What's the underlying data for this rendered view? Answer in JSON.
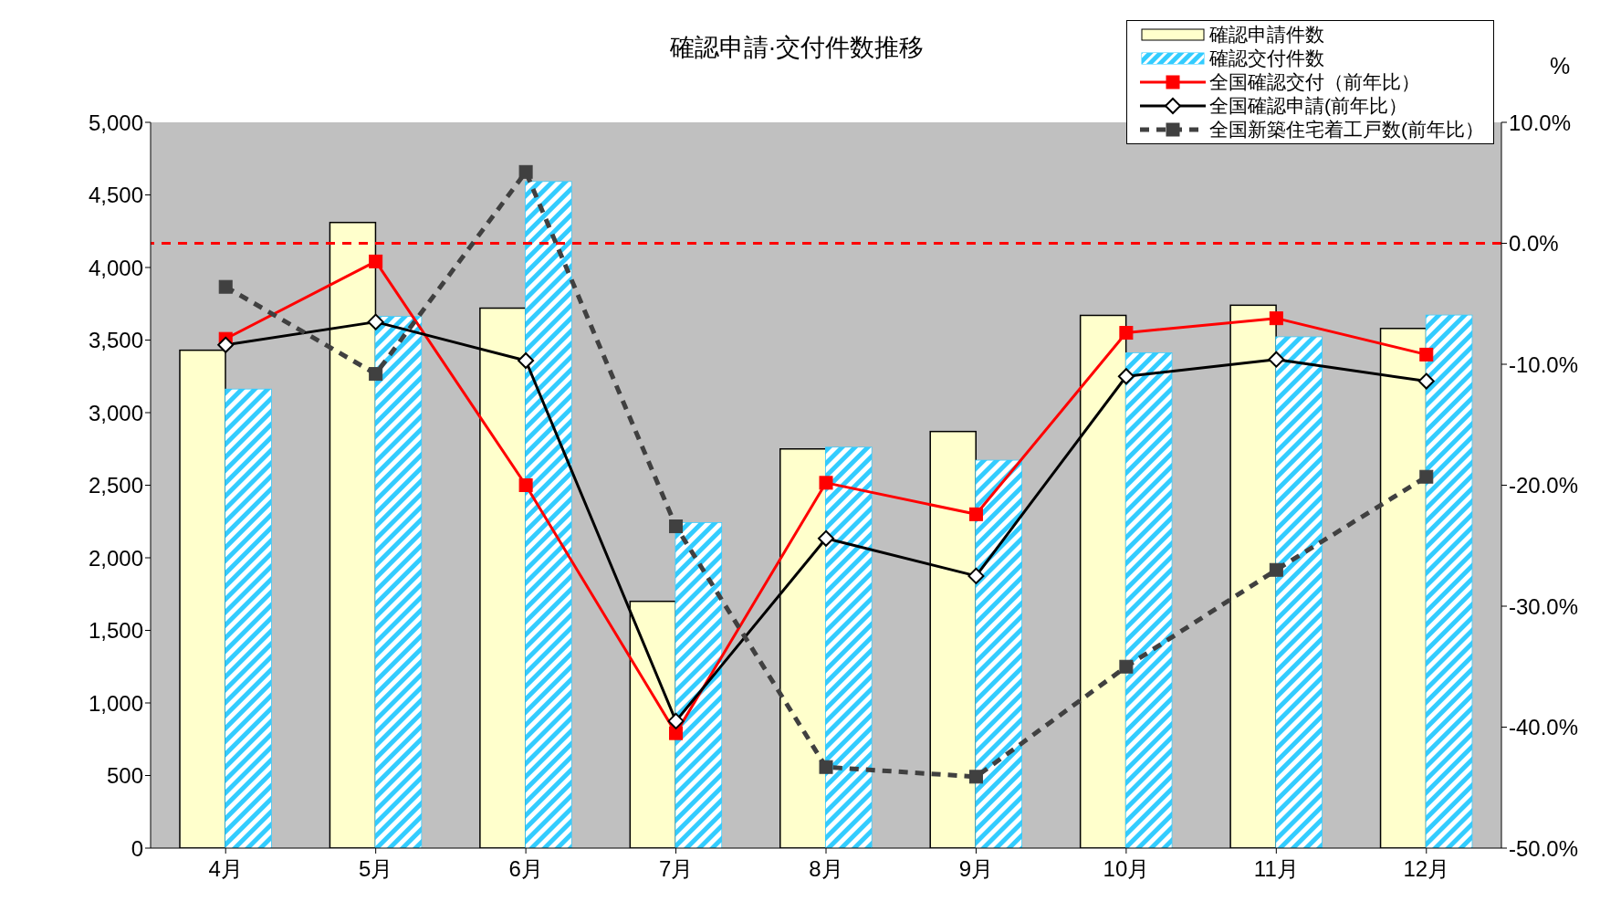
{
  "chart_data": {
    "type": "bar",
    "title": "確認申請·交付件数推移",
    "y2label": "%",
    "categories": [
      "4月",
      "5月",
      "6月",
      "7月",
      "8月",
      "9月",
      "10月",
      "11月",
      "12月"
    ],
    "series": [
      {
        "name": "確認申請件数",
        "color": "#ffffcc",
        "values": [
          3430,
          4310,
          3720,
          1700,
          2750,
          2870,
          3670,
          3740,
          3580
        ]
      },
      {
        "name": "確認交付件数",
        "color": "#33ccff",
        "values": [
          3160,
          3660,
          4590,
          2240,
          2760,
          2670,
          3410,
          3520,
          3670
        ]
      },
      {
        "name": "全国確認交付（前年比）",
        "type": "line",
        "axis": "y2",
        "color": "#ff0000",
        "marker": "square",
        "line_style": "solid",
        "values": [
          -7.9,
          -1.5,
          -20.0,
          -40.5,
          -19.8,
          -22.4,
          -7.4,
          -6.2,
          -9.2
        ]
      },
      {
        "name": "全国確認申請(前年比）",
        "type": "line",
        "axis": "y2",
        "color": "#000000",
        "marker": "diamond",
        "line_style": "solid",
        "values": [
          -8.4,
          -6.5,
          -9.7,
          -39.5,
          -24.4,
          -27.5,
          -11.0,
          -9.6,
          -11.4
        ]
      },
      {
        "name": "全国新築住宅着工戸数(前年比）",
        "type": "line",
        "axis": "y2",
        "color": "#404040",
        "marker": "square",
        "line_style": "dashed",
        "values": [
          -3.6,
          -10.8,
          5.9,
          -23.4,
          -43.3,
          -44.1,
          -35.0,
          -27.0,
          -19.3
        ]
      }
    ],
    "ylim": [
      0,
      5000
    ],
    "yticks": [
      {
        "value": 0,
        "label": "0"
      },
      {
        "value": 500,
        "label": "500"
      },
      {
        "value": 1000,
        "label": "1,000"
      },
      {
        "value": 1500,
        "label": "1,500"
      },
      {
        "value": 2000,
        "label": "2,000"
      },
      {
        "value": 2500,
        "label": "2,500"
      },
      {
        "value": 3000,
        "label": "3,000"
      },
      {
        "value": 3500,
        "label": "3,500"
      },
      {
        "value": 4000,
        "label": "4,000"
      },
      {
        "value": 4500,
        "label": "4,500"
      },
      {
        "value": 5000,
        "label": "5,000"
      }
    ],
    "y2lim": [
      -50,
      10
    ],
    "y2ticks": [
      {
        "value": -50,
        "label": "-50.0%"
      },
      {
        "value": -40,
        "label": "-40.0%"
      },
      {
        "value": -30,
        "label": "-30.0%"
      },
      {
        "value": -20,
        "label": "-20.0%"
      },
      {
        "value": -10,
        "label": "-10.0%"
      },
      {
        "value": 0,
        "label": "0.0%"
      },
      {
        "value": 10,
        "label": "10.0%"
      }
    ],
    "ref_lines": [
      {
        "axis": "y2",
        "value": 0,
        "color": "#ff0000",
        "line_style": "dashed"
      }
    ],
    "grid": false,
    "legend": "top right"
  }
}
